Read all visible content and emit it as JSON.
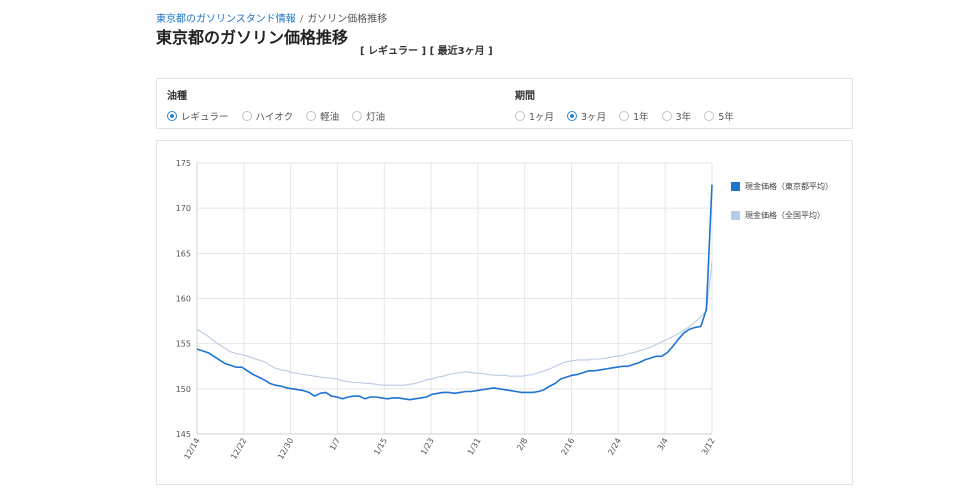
{
  "breadcrumb": {
    "parent": "東京都のガソリンスタンド情報",
    "separator": "/",
    "current": "ガソリン価格推移"
  },
  "page": {
    "title": "東京都のガソリン価格推移",
    "subtitle": "[ レギュラー ] [ 最近3ヶ月 ]"
  },
  "filters": {
    "fuel": {
      "label": "油種",
      "options": [
        "レギュラー",
        "ハイオク",
        "軽油",
        "灯油"
      ],
      "selected": "レギュラー"
    },
    "period": {
      "label": "期間",
      "options": [
        "1ヶ月",
        "3ヶ月",
        "1年",
        "3年",
        "5年"
      ],
      "selected": "3ヶ月"
    }
  },
  "colors": {
    "tokyo": "#1f74d2",
    "national": "#b8cbe6",
    "radio_selected": "#2a87c8"
  },
  "chart_data": {
    "type": "line",
    "title": "",
    "xlabel": "",
    "ylabel": "",
    "ylim": [
      145,
      175
    ],
    "yticks": [
      145,
      150,
      155,
      160,
      165,
      170,
      175
    ],
    "xtick_labels": [
      "12/14",
      "12/22",
      "12/30",
      "1/7",
      "1/15",
      "1/23",
      "1/31",
      "2/8",
      "2/16",
      "2/24",
      "3/4",
      "3/12"
    ],
    "grid": true,
    "legend_position": "right",
    "series": [
      {
        "name": "現金価格（東京都平均）",
        "color": "#1f74d2",
        "values": [
          154.4,
          154.2,
          154.0,
          153.6,
          153.2,
          152.8,
          152.6,
          152.4,
          152.4,
          152.0,
          151.6,
          151.3,
          151.0,
          150.6,
          150.4,
          150.3,
          150.1,
          150.0,
          149.9,
          149.8,
          149.6,
          149.2,
          149.5,
          149.6,
          149.2,
          149.1,
          148.9,
          149.1,
          149.2,
          149.2,
          148.9,
          149.1,
          149.1,
          149.0,
          148.9,
          149.0,
          149.0,
          148.9,
          148.8,
          148.9,
          149.0,
          149.1,
          149.4,
          149.5,
          149.6,
          149.6,
          149.5,
          149.6,
          149.7,
          149.7,
          149.8,
          149.9,
          150.0,
          150.1,
          150.0,
          149.9,
          149.8,
          149.7,
          149.6,
          149.6,
          149.6,
          149.7,
          149.9,
          150.3,
          150.6,
          151.1,
          151.3,
          151.5,
          151.6,
          151.8,
          152.0,
          152.0,
          152.1,
          152.2,
          152.3,
          152.4,
          152.5,
          152.5,
          152.7,
          152.9,
          153.2,
          153.4,
          153.6,
          153.6,
          154.0,
          154.7,
          155.5,
          156.2,
          156.6,
          156.8,
          156.9,
          158.8,
          172.6
        ]
      },
      {
        "name": "現金価格（全国平均）",
        "color": "#b8cbe6",
        "values": [
          156.6,
          156.2,
          155.8,
          155.3,
          154.9,
          154.5,
          154.1,
          153.9,
          153.8,
          153.6,
          153.4,
          153.2,
          153.0,
          152.6,
          152.3,
          152.1,
          152.0,
          151.8,
          151.7,
          151.6,
          151.5,
          151.4,
          151.3,
          151.2,
          151.2,
          151.1,
          150.9,
          150.8,
          150.7,
          150.7,
          150.6,
          150.6,
          150.5,
          150.4,
          150.4,
          150.4,
          150.4,
          150.4,
          150.5,
          150.6,
          150.8,
          151.0,
          151.1,
          151.3,
          151.4,
          151.6,
          151.7,
          151.8,
          151.9,
          151.8,
          151.7,
          151.7,
          151.6,
          151.5,
          151.5,
          151.5,
          151.4,
          151.4,
          151.4,
          151.5,
          151.6,
          151.8,
          152.0,
          152.2,
          152.5,
          152.8,
          153.0,
          153.1,
          153.2,
          153.2,
          153.2,
          153.3,
          153.3,
          153.4,
          153.5,
          153.6,
          153.7,
          153.9,
          154.0,
          154.2,
          154.4,
          154.6,
          154.9,
          155.2,
          155.5,
          155.8,
          156.1,
          156.5,
          156.9,
          157.4,
          158.0,
          158.6,
          164.0
        ]
      }
    ]
  }
}
